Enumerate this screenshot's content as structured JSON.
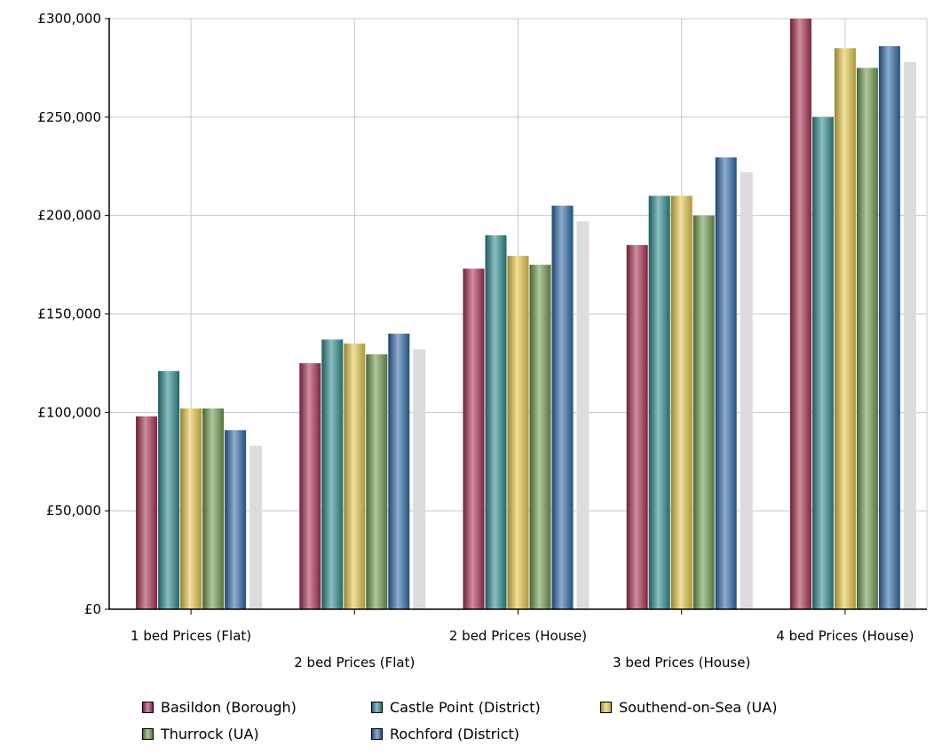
{
  "chart_data": {
    "type": "bar",
    "title": "",
    "xlabel": "",
    "ylabel": "",
    "ylim": [
      0,
      300000
    ],
    "grid": true,
    "legend_position": "bottom",
    "y_ticks": [
      {
        "value": 0,
        "label": "£0"
      },
      {
        "value": 50000,
        "label": "£50,000"
      },
      {
        "value": 100000,
        "label": "£100,000"
      },
      {
        "value": 150000,
        "label": "£150,000"
      },
      {
        "value": 200000,
        "label": "£200,000"
      },
      {
        "value": 250000,
        "label": "£250,000"
      },
      {
        "value": 300000,
        "label": "£300,000"
      }
    ],
    "categories": [
      "1 bed Prices (Flat)",
      "2 bed Prices (Flat)",
      "2 bed Prices (House)",
      "3 bed Prices (House)",
      "4 bed Prices (House)"
    ],
    "series": [
      {
        "name": "Basildon (Borough)",
        "color": "#a8304f",
        "values": [
          98000,
          125000,
          173000,
          185000,
          300000
        ]
      },
      {
        "name": "Castle Point (District)",
        "color": "#2e8a8e",
        "values": [
          121000,
          137000,
          190000,
          210000,
          250000
        ]
      },
      {
        "name": "Southend-on-Sea (UA)",
        "color": "#e6c94a",
        "values": [
          102000,
          135000,
          179500,
          210000,
          285000
        ]
      },
      {
        "name": "Thurrock (UA)",
        "color": "#6e9a4e",
        "values": [
          102000,
          129500,
          175000,
          200000,
          275000
        ]
      },
      {
        "name": "Rochford (District)",
        "color": "#2f6aa8",
        "values": [
          91000,
          140000,
          205000,
          229500,
          286000
        ]
      }
    ],
    "unlabeled_series": [
      {
        "color": "#dcdcdc",
        "values": [
          83000,
          132000,
          197000,
          222000,
          278000
        ]
      }
    ]
  }
}
